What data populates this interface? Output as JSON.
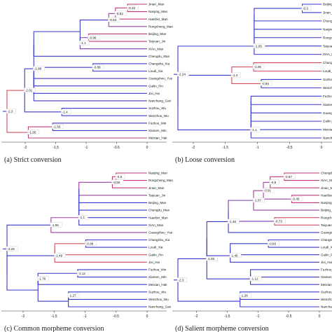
{
  "figure": {
    "panels": [
      {
        "caption": "(a) Strict conversion",
        "axis_ticks": [
          "-2",
          "-1.5",
          "-1",
          "-0.5",
          "0"
        ],
        "leaves": [
          "Jinan_Man",
          "Nanjing_Man",
          "Haerbin_Man",
          "Rongcheng_Man",
          "Beijing_Man",
          "Taiyuan_Jin",
          "XiAn_Man",
          "Chengdu_Man",
          "Changsha_Xia",
          "Loudi_Xia",
          "Guangzhou_Yue",
          "Guilin_Pin",
          "Jixi_Hui",
          "Nanchang_Gan",
          "Suzhou_Wu",
          "Wenzhou_Wu",
          "Fuzhou_Min",
          "Xiamen_Min",
          "Meixian_Hak"
        ],
        "nodes": [
          "-0.32",
          "-0.52",
          "-0.63",
          "-0.96",
          "-1.1",
          "-0.89",
          "-1.86",
          "-2.01",
          "-1.4",
          "-2.3",
          "-1.55",
          "-1.95"
        ]
      },
      {
        "caption": "(b) Loose conversion",
        "axis_ticks": [
          "-2",
          "-1.5",
          "-1",
          "-0.5",
          "0"
        ],
        "leaves": [
          "Beijing_Man",
          "Jinan_Man",
          "Chengdu_Man",
          "Nanjing_Man",
          "Rongcheng_Man",
          "Taiyuan_Jin",
          "XiAn_Man",
          "Changsha_Xia",
          "Loudi_Xia",
          "Suzhou_Wu",
          "Wenzhou_Wu",
          "Fuzhou_Min",
          "Xiamen_Min",
          "Guangzhou_Yue",
          "Guilin_Pin",
          "Meixian_Hak",
          "Nanchang_Gan"
        ],
        "nodes": [
          "-0.3",
          "-1.05",
          "-1.06",
          "-1.4",
          "-0.94",
          "-1.1",
          "-2.24"
        ]
      },
      {
        "caption": "(c) Common morpheme conversion",
        "axis_ticks": [
          "-2",
          "-1.5",
          "-1",
          "-0.5",
          "0"
        ],
        "leaves": [
          "Nanjing_Man",
          "Rongcheng_Man",
          "Jinan_Man",
          "Taiyuan_Jin",
          "Beijing_Man",
          "Chengdu_Man",
          "Haerbin_Man",
          "XiAn_Man",
          "Guangzhou_Yue",
          "Changsha_Xia",
          "Loudi_Xia",
          "Guilin_Pin",
          "Jixi_Hui",
          "Fuzhou_Min",
          "Xiamen_Min",
          "Meixian_Hak",
          "Suzhou_Wu",
          "Wenzhou_Wu",
          "Nanchang_Gan"
        ],
        "nodes": [
          "-0.5",
          "-0.56",
          "-1.1",
          "-1.55",
          "-0.99",
          "-1.49",
          "-2.26",
          "-1.12",
          "-1.76",
          "-1.27"
        ]
      },
      {
        "caption": "(d) Salient morpheme conversion",
        "axis_ticks": [
          "-2",
          "-1.5",
          "-1",
          "-0.5",
          "0"
        ],
        "leaves": [
          "Chengdu_Man",
          "XiAn_Man",
          "Jinan_Man",
          "Haerbin_Man",
          "Nanjing_Man",
          "Beijing_Man",
          "Rongcheng_Man",
          "Taiyuan_Jin",
          "Guangzhou_Yue",
          "Changsha_Xia",
          "Loudi_Xia",
          "Guilin_Pin",
          "Jixi_Hui",
          "Fuzhou_Min",
          "Xiamen_Min",
          "Meixian_Hak",
          "Suzhou_Wu",
          "Wenzhou_Wu",
          "Nanchang_Gan"
        ],
        "nodes": [
          "-0.57",
          "-0.8",
          "-0.45",
          "-0.91",
          "-1.07",
          "-0.73",
          "-1.48",
          "-0.83",
          "-1.45",
          "-1.83",
          "-1.12",
          "-1.29",
          "-2.3"
        ]
      }
    ]
  }
}
